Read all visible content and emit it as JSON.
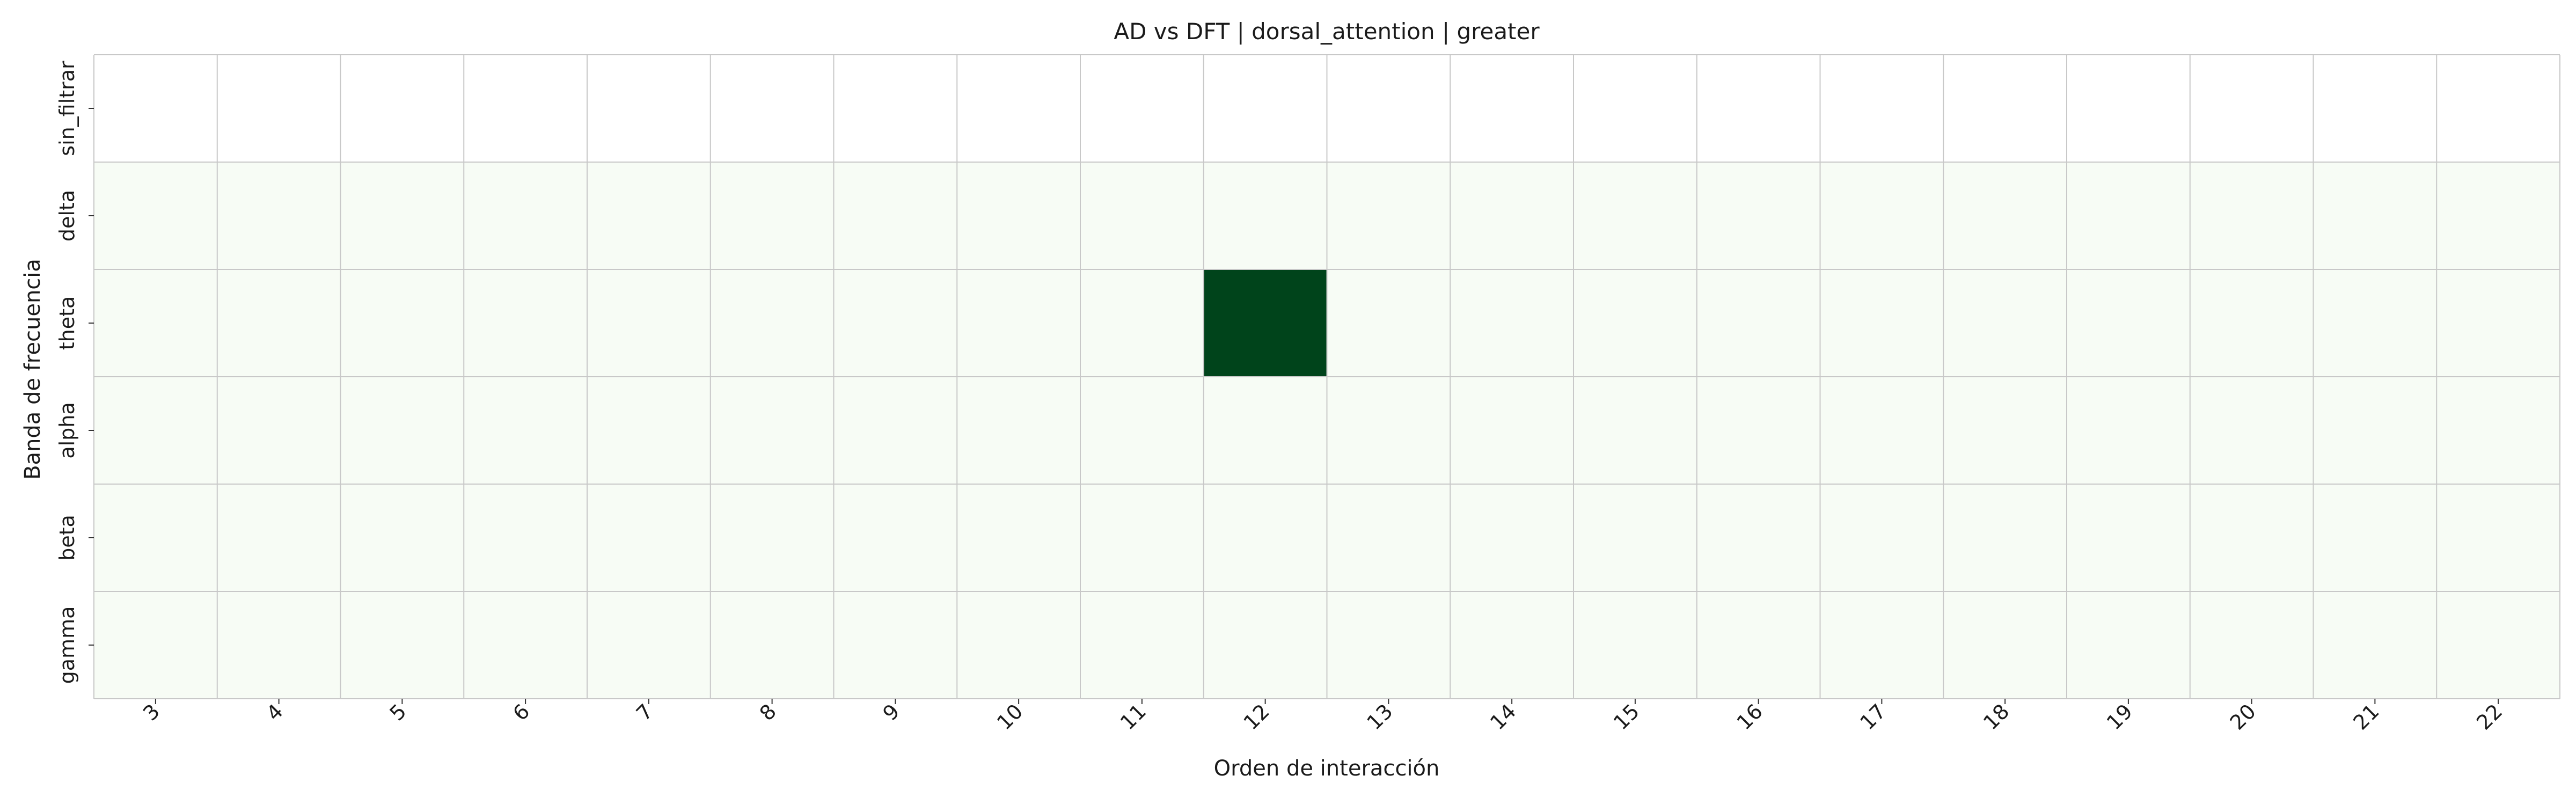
{
  "chart_data": {
    "type": "heatmap",
    "title": "AD vs DFT | dorsal_attention | greater",
    "xlabel": "Orden de interacción",
    "ylabel": "Banda de frecuencia",
    "x_categories": [
      "3",
      "4",
      "5",
      "6",
      "7",
      "8",
      "9",
      "10",
      "11",
      "12",
      "13",
      "14",
      "15",
      "16",
      "17",
      "18",
      "19",
      "20",
      "21",
      "22"
    ],
    "y_categories": [
      "sin_filtrar",
      "delta",
      "theta",
      "alpha",
      "beta",
      "gamma"
    ],
    "values": [
      [
        null,
        null,
        null,
        null,
        null,
        null,
        null,
        null,
        null,
        null,
        null,
        null,
        null,
        null,
        null,
        null,
        null,
        null,
        null,
        null
      ],
      [
        0,
        0,
        0,
        0,
        0,
        0,
        0,
        0,
        0,
        0,
        0,
        0,
        0,
        0,
        0,
        0,
        0,
        0,
        0,
        0
      ],
      [
        0,
        0,
        0,
        0,
        0,
        0,
        0,
        0,
        0,
        1,
        0,
        0,
        0,
        0,
        0,
        0,
        0,
        0,
        0,
        0
      ],
      [
        0,
        0,
        0,
        0,
        0,
        0,
        0,
        0,
        0,
        0,
        0,
        0,
        0,
        0,
        0,
        0,
        0,
        0,
        0,
        0
      ],
      [
        0,
        0,
        0,
        0,
        0,
        0,
        0,
        0,
        0,
        0,
        0,
        0,
        0,
        0,
        0,
        0,
        0,
        0,
        0,
        0
      ],
      [
        0,
        0,
        0,
        0,
        0,
        0,
        0,
        0,
        0,
        0,
        0,
        0,
        0,
        0,
        0,
        0,
        0,
        0,
        0,
        0
      ]
    ],
    "value_range": [
      0,
      1
    ],
    "colormap": {
      "low": "#f7fcf5",
      "high": "#00441b",
      "missing": "#ffffff"
    },
    "grid": true,
    "grid_color": "#c8c8c8",
    "legend": "none"
  }
}
